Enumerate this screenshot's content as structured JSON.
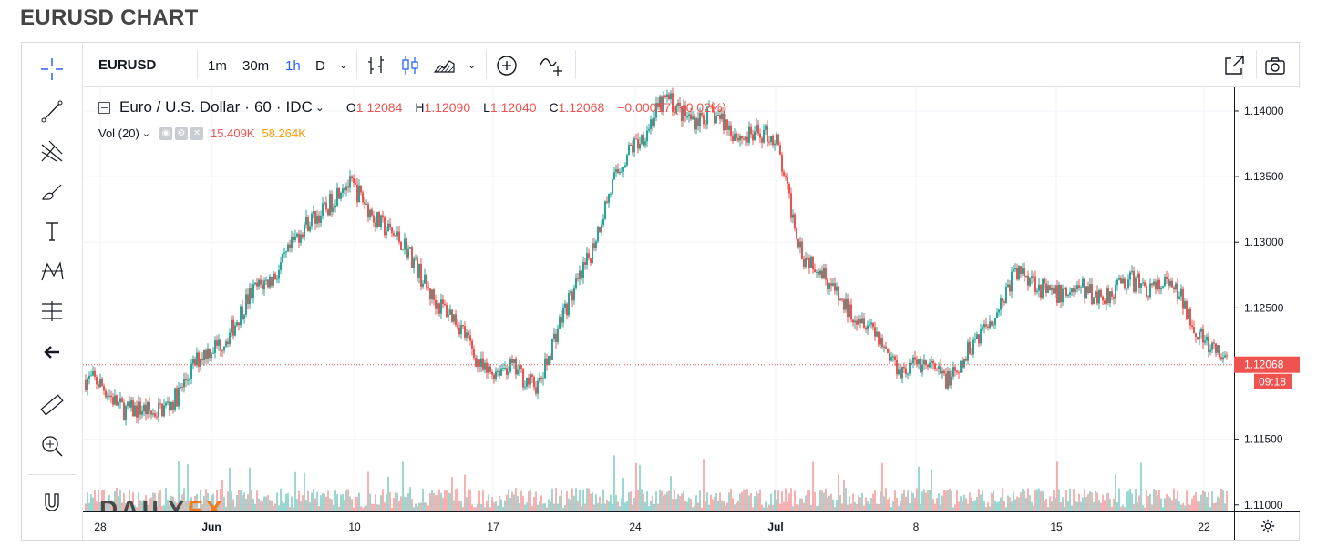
{
  "page": {
    "title": "EURUSD CHART"
  },
  "toolbar": {
    "symbol": "EURUSD",
    "intervals": [
      "1m",
      "30m",
      "1h",
      "D"
    ],
    "active_interval": "1h"
  },
  "legend": {
    "name": "Euro / U.S. Dollar",
    "sep1": "·",
    "timeframe": "60",
    "sep2": "·",
    "source": "IDC",
    "open_label": "O",
    "open": "1.12084",
    "high_label": "H",
    "high": "1.12090",
    "low_label": "L",
    "low": "1.12040",
    "close_label": "C",
    "close": "1.12068",
    "change": "−0.00017 (−0.02%)",
    "volume_label": "Vol (20)",
    "volume_value": "15.409K",
    "volume_ma": "58.264K",
    "volume_color": "#ef5350",
    "volume_ma_color": "#ff9800"
  },
  "price_axis": {
    "ticks": [
      "1.14000",
      "1.13500",
      "1.13000",
      "1.12500",
      "1.11500",
      "1.11000"
    ],
    "last_price": "1.12068",
    "countdown": "09:18"
  },
  "time_axis": {
    "labels": [
      "28",
      "Jun",
      "10",
      "17",
      "24",
      "Jul",
      "8",
      "15",
      "22"
    ],
    "bold": [
      "Jun",
      "Jul"
    ]
  },
  "watermark": {
    "part1": "DAILY",
    "part2": "FX"
  },
  "colors": {
    "up": "#26a69a",
    "down": "#ef5350",
    "accent": "#2962ff",
    "brand_orange": "#f47b20"
  },
  "chart_data": {
    "type": "candlestick",
    "symbol": "EURUSD",
    "ylim": [
      1.1095,
      1.1418
    ],
    "x_ticks": [
      "28",
      "Jun",
      "10",
      "17",
      "24",
      "Jul",
      "8",
      "15",
      "22"
    ],
    "y_ticks": [
      1.14,
      1.135,
      1.13,
      1.125,
      1.115,
      1.11
    ],
    "last_price": 1.12068,
    "price_path": [
      {
        "x": "28",
        "y": 1.1195
      },
      {
        "x": "Jun",
        "y": 1.1165
      },
      {
        "x": "Jun",
        "y": 1.1235
      },
      {
        "x": "10",
        "y": 1.1345
      },
      {
        "x": "10",
        "y": 1.1315
      },
      {
        "x": "17",
        "y": 1.1205
      },
      {
        "x": "17",
        "y": 1.1195
      },
      {
        "x": "24",
        "y": 1.1375
      },
      {
        "x": "24",
        "y": 1.1405
      },
      {
        "x": "Jul",
        "y": 1.1375
      },
      {
        "x": "Jul",
        "y": 1.129
      },
      {
        "x": "8",
        "y": 1.1205
      },
      {
        "x": "8",
        "y": 1.12
      },
      {
        "x": "15",
        "y": 1.1275
      },
      {
        "x": "15",
        "y": 1.126
      },
      {
        "x": "22",
        "y": 1.127
      },
      {
        "x": "22",
        "y": 1.12068
      }
    ],
    "volume_ma": "58.264K",
    "grid": true
  }
}
